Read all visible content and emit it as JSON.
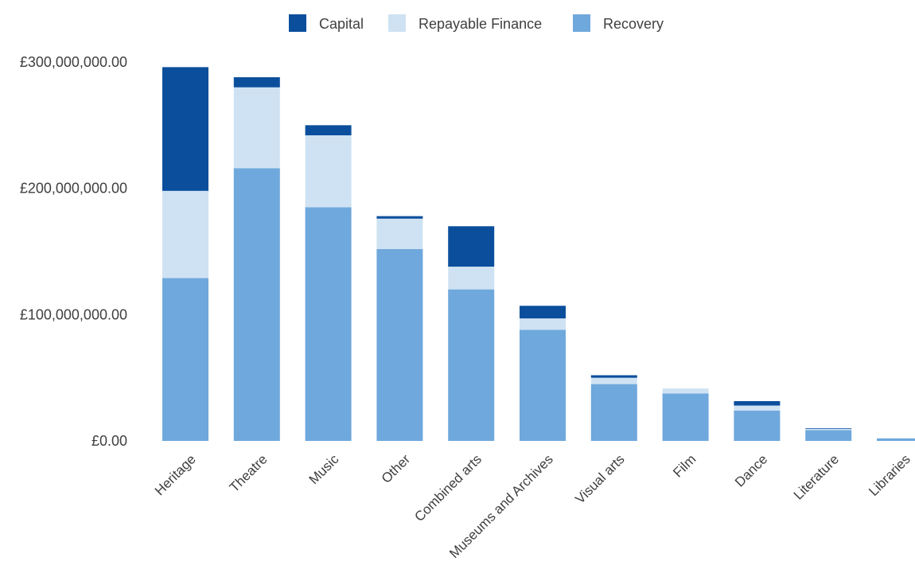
{
  "chart_data": {
    "type": "bar",
    "stacked": true,
    "categories": [
      "Heritage",
      "Theatre",
      "Music",
      "Other",
      "Combined arts",
      "Museums and Archives",
      "Visual arts",
      "Film",
      "Dance",
      "Literature",
      "Libraries"
    ],
    "series": [
      {
        "name": "Recovery",
        "color": "#6fa8dc",
        "values": [
          129000000,
          216000000,
          185000000,
          152000000,
          120000000,
          88000000,
          45000000,
          37500000,
          24000000,
          8500000,
          2000000
        ]
      },
      {
        "name": "Repayable Finance",
        "color": "#cfe2f3",
        "values": [
          69000000,
          64000000,
          57000000,
          24000000,
          18000000,
          9000000,
          5000000,
          4000000,
          4000000,
          1000000,
          0
        ]
      },
      {
        "name": "Capital",
        "color": "#0b4f9c",
        "values": [
          98000000,
          8000000,
          8000000,
          2000000,
          32000000,
          10000000,
          2000000,
          0,
          3500000,
          500000,
          0
        ]
      }
    ],
    "legend": [
      "Capital",
      "Repayable Finance",
      "Recovery"
    ],
    "legend_position": "top",
    "yticks": [
      "£0.00",
      "£100,000,000.00",
      "£200,000,000.00",
      "£300,000,000.00"
    ],
    "ylim": [
      0,
      300000000
    ],
    "grid": false
  }
}
